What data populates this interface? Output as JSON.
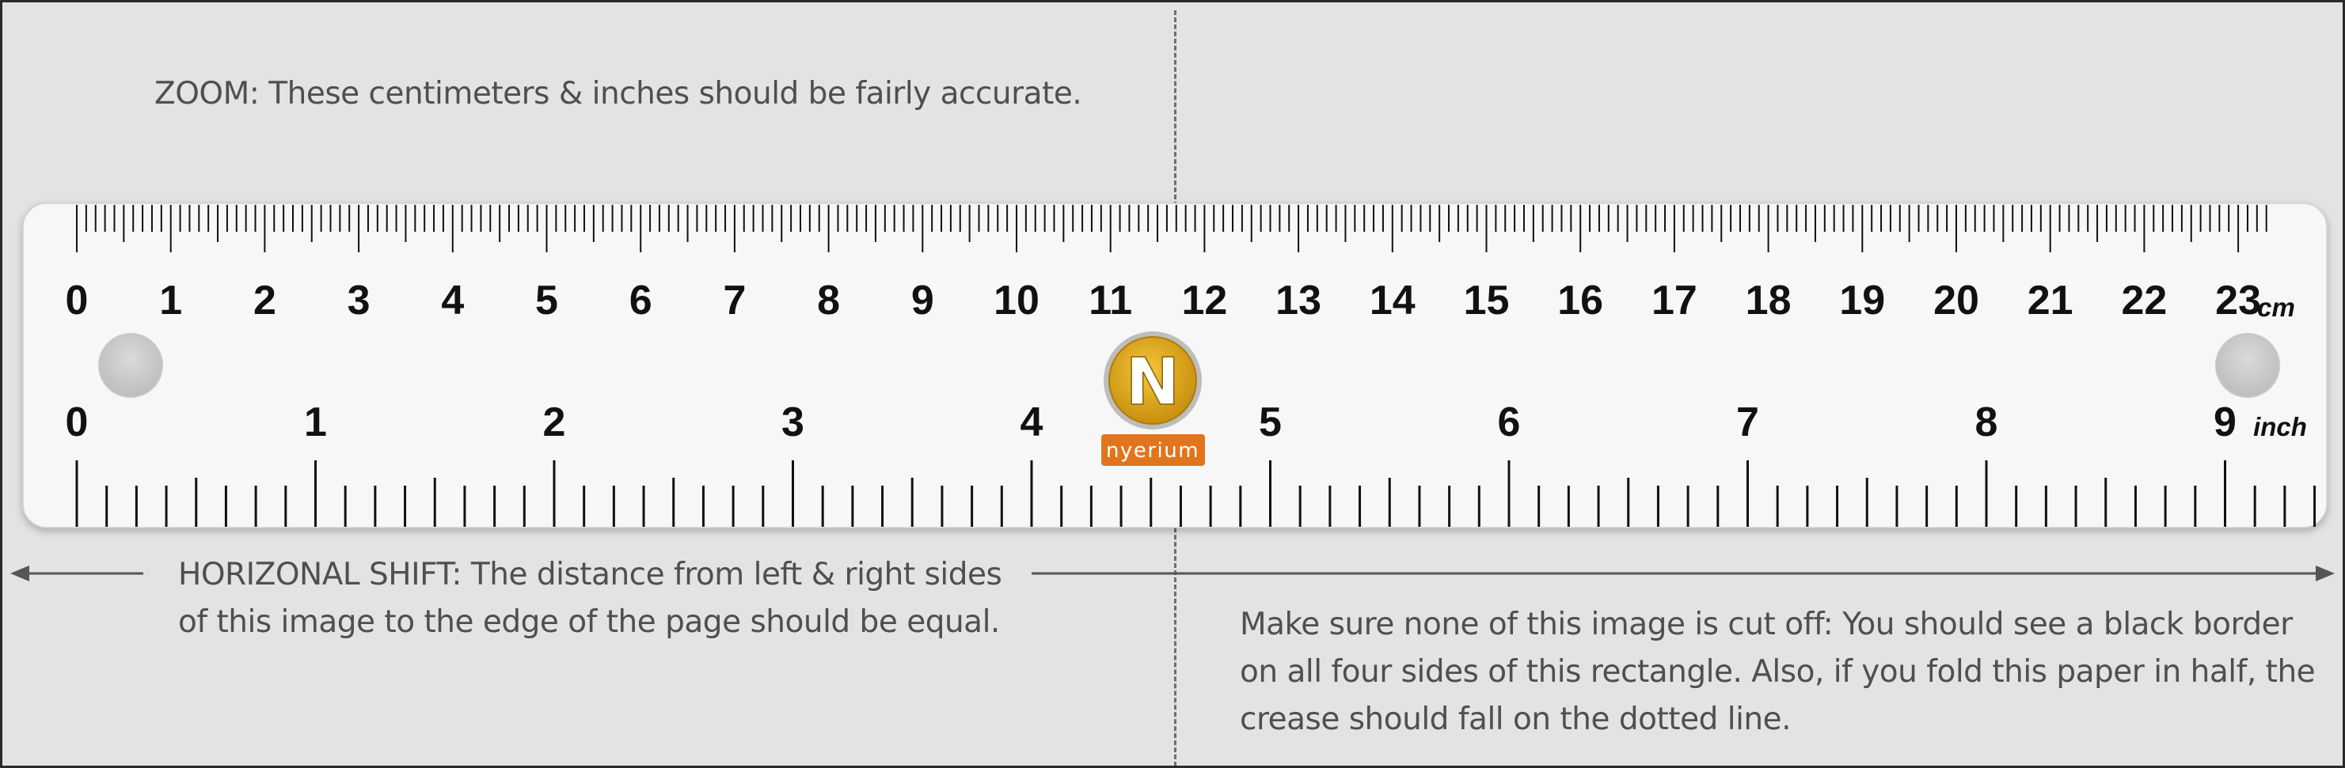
{
  "notes": {
    "zoom": {
      "label": "ZOOM:",
      "text": " These centimeters & inches should be fairly accurate."
    },
    "shift": {
      "label": "HORIZONAL SHIFT:",
      "line1": " The distance from left & right sides",
      "line2": "of this image to the edge of the page should be equal."
    },
    "fold": {
      "line1": "Make sure none of this image is cut off: You should see a black border",
      "line2": "on all four sides of this rectangle. Also, if you fold this paper in half, the",
      "line3": "crease should fall on the dotted line."
    }
  },
  "ruler": {
    "cm_unit": "cm",
    "inch_unit": "inch",
    "cm_labels": [
      "0",
      "1",
      "2",
      "3",
      "4",
      "5",
      "6",
      "7",
      "8",
      "9",
      "10",
      "11",
      "12",
      "13",
      "14",
      "15",
      "16",
      "17",
      "18",
      "19",
      "20",
      "21",
      "22",
      "23"
    ],
    "inch_labels": [
      "0",
      "1",
      "2",
      "3",
      "4",
      "5",
      "6",
      "7",
      "8",
      "9"
    ],
    "logo_text": "nyerium",
    "logo_letter": "N"
  },
  "colors": {
    "background": "#e3e3e3",
    "ruler": "#f7f7f7",
    "ticks": "#111111",
    "text": "#4f4f4f",
    "logo_gold": "#d9a514",
    "logo_orange": "#e2751b"
  }
}
